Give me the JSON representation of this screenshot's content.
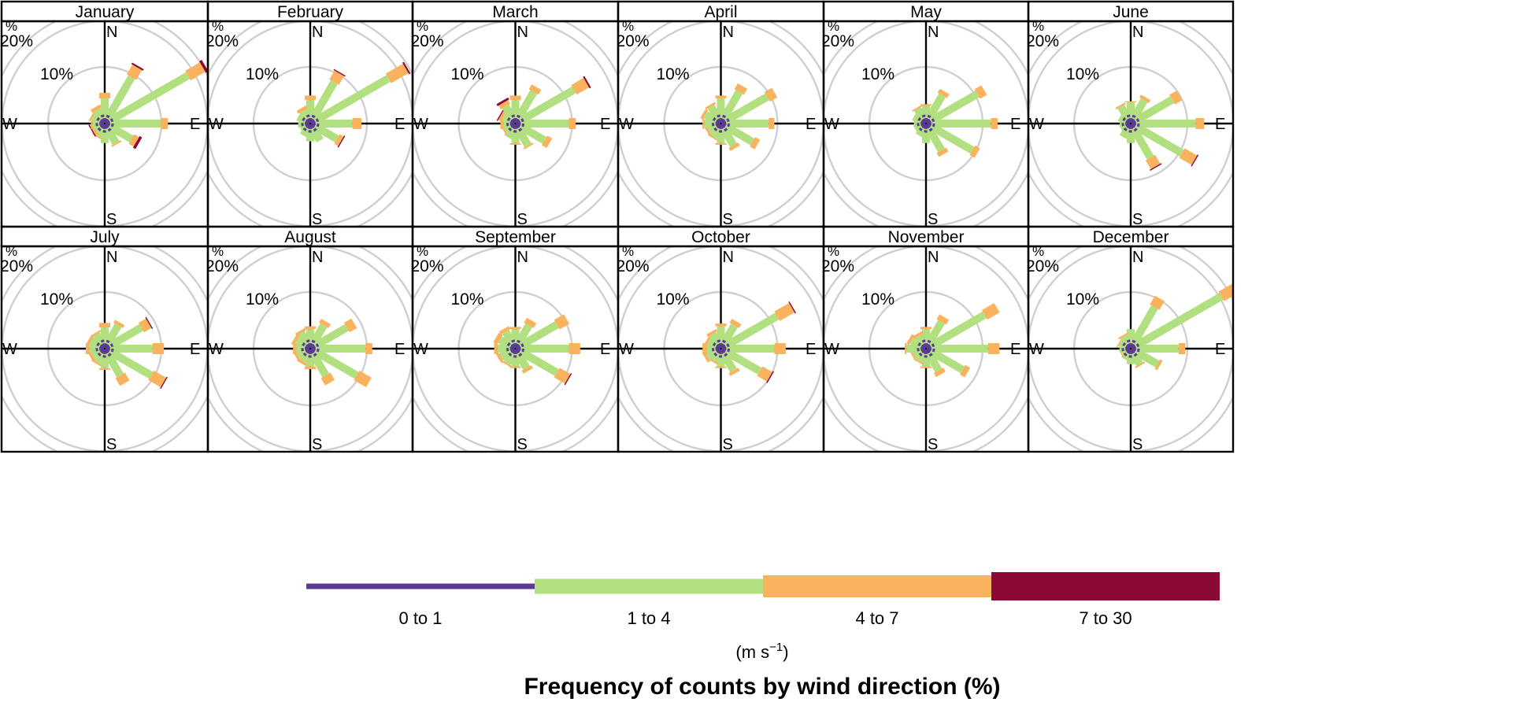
{
  "chart_data": {
    "type": "windrose",
    "facet_by": "month",
    "compass_labels": [
      "N",
      "E",
      "S",
      "W"
    ],
    "directions_deg": [
      0,
      30,
      60,
      90,
      120,
      150,
      180,
      210,
      240,
      270,
      300,
      330
    ],
    "ring_values": [
      10,
      20
    ],
    "ring_labels": [
      "10%",
      "20%"
    ],
    "axis_unit_label": "%",
    "radial_max": 22,
    "legend": {
      "title_main": "(m s",
      "title_sup": "−1",
      "title_end": ")",
      "bins": [
        {
          "label": "0 to 1",
          "color": "#5b3a94"
        },
        {
          "label": "1 to 4",
          "color": "#b2e080"
        },
        {
          "label": "4 to 7",
          "color": "#f9b25e"
        },
        {
          "label": "7 to 30",
          "color": "#8a0a34"
        }
      ]
    },
    "xlabel": "Frequency of counts by wind direction (%)",
    "panels": [
      {
        "month": "January",
        "segments": [
          [
            0.8,
            3.5,
            1,
            0
          ],
          [
            0.8,
            8.5,
            2,
            0.3
          ],
          [
            0.8,
            16,
            3,
            0.5
          ],
          [
            0.8,
            9,
            1.2,
            0
          ],
          [
            0.8,
            4.5,
            1,
            0.5
          ],
          [
            0.8,
            3,
            0.3,
            0
          ],
          [
            0.8,
            2.5,
            0,
            0
          ],
          [
            0.8,
            1.5,
            0.3,
            0
          ],
          [
            0.8,
            1,
            0.5,
            0.2
          ],
          [
            0.8,
            1.2,
            0.3,
            0
          ],
          [
            0.8,
            1.5,
            0.3,
            0
          ],
          [
            0.8,
            1.8,
            0.6,
            0
          ]
        ]
      },
      {
        "month": "February",
        "segments": [
          [
            0.8,
            3.2,
            0.8,
            0
          ],
          [
            0.8,
            7.5,
            1.8,
            0.2
          ],
          [
            0.8,
            15,
            3.5,
            0.3
          ],
          [
            0.8,
            6.5,
            1.6,
            0
          ],
          [
            0.8,
            4.5,
            0.8,
            0.2
          ],
          [
            0.8,
            2.5,
            0,
            0
          ],
          [
            0.8,
            2.2,
            0,
            0
          ],
          [
            0.8,
            1.5,
            0,
            0
          ],
          [
            0.8,
            1,
            0,
            0
          ],
          [
            0.8,
            1.2,
            0,
            0
          ],
          [
            0.8,
            1.5,
            0,
            0
          ],
          [
            0.8,
            1.6,
            0.6,
            0
          ]
        ]
      },
      {
        "month": "March",
        "segments": [
          [
            0.8,
            3.2,
            0.8,
            0
          ],
          [
            0.8,
            5.5,
            1,
            0
          ],
          [
            0.8,
            11,
            2.5,
            0.3
          ],
          [
            0.8,
            8.5,
            1.2,
            0
          ],
          [
            0.8,
            5,
            1,
            0
          ],
          [
            0.8,
            3.5,
            0.3,
            0
          ],
          [
            0.8,
            2.5,
            0.3,
            0
          ],
          [
            0.8,
            1.8,
            0,
            0
          ],
          [
            0.8,
            1.2,
            0.3,
            0
          ],
          [
            0.8,
            1.2,
            0.5,
            0
          ],
          [
            0.8,
            1.5,
            0.5,
            0.2
          ],
          [
            0.8,
            2.5,
            0.8,
            0.4
          ]
        ]
      },
      {
        "month": "April",
        "segments": [
          [
            0.8,
            3.5,
            0.5,
            0
          ],
          [
            0.8,
            5.5,
            1.2,
            0
          ],
          [
            0.8,
            8.5,
            1.5,
            0
          ],
          [
            0.8,
            7.5,
            1,
            0
          ],
          [
            0.8,
            5.5,
            1,
            0
          ],
          [
            0.8,
            3.5,
            0.6,
            0
          ],
          [
            0.8,
            2.5,
            0.3,
            0
          ],
          [
            0.8,
            1.8,
            0.2,
            0
          ],
          [
            0.8,
            1.5,
            0.4,
            0
          ],
          [
            0.8,
            2,
            0.3,
            0
          ],
          [
            0.8,
            2.2,
            0.5,
            0
          ],
          [
            0.8,
            2.5,
            0.4,
            0
          ]
        ]
      },
      {
        "month": "May",
        "segments": [
          [
            0.8,
            2.2,
            0.3,
            0
          ],
          [
            0.8,
            4.8,
            0.8,
            0
          ],
          [
            0.8,
            9.5,
            1.4,
            0
          ],
          [
            0.8,
            10.5,
            1.2,
            0
          ],
          [
            0.8,
            8.5,
            1,
            0
          ],
          [
            0.8,
            4.5,
            0.8,
            0
          ],
          [
            0.8,
            2.5,
            0,
            0
          ],
          [
            0.8,
            1.5,
            0,
            0
          ],
          [
            0.8,
            1.2,
            0,
            0
          ],
          [
            0.8,
            1.2,
            0,
            0
          ],
          [
            0.8,
            1.5,
            0,
            0
          ],
          [
            0.8,
            2,
            0.3,
            0
          ]
        ]
      },
      {
        "month": "June",
        "segments": [
          [
            0.8,
            2.8,
            0.2,
            0
          ],
          [
            0.8,
            3.8,
            0.6,
            0
          ],
          [
            0.8,
            7.5,
            1.5,
            0
          ],
          [
            0.8,
            10.5,
            1.5,
            0
          ],
          [
            0.8,
            9.5,
            2.5,
            0.2
          ],
          [
            0.8,
            6,
            1.8,
            0.2
          ],
          [
            0.8,
            2.5,
            0,
            0
          ],
          [
            0.8,
            1.8,
            0,
            0
          ],
          [
            0.8,
            1,
            0,
            0
          ],
          [
            0.8,
            1,
            0,
            0
          ],
          [
            0.8,
            1.3,
            0,
            0
          ],
          [
            0.8,
            2.5,
            0.3,
            0
          ]
        ]
      },
      {
        "month": "July",
        "segments": [
          [
            0.8,
            2.8,
            0.8,
            0
          ],
          [
            0.8,
            3.8,
            0.6,
            0
          ],
          [
            0.8,
            6.5,
            1.5,
            0.2
          ],
          [
            0.8,
            7.5,
            2,
            0
          ],
          [
            0.8,
            8.5,
            2.5,
            0.2
          ],
          [
            0.8,
            4.5,
            1.6,
            0
          ],
          [
            0.8,
            2.5,
            0.3,
            0
          ],
          [
            0.8,
            1.8,
            0.3,
            0
          ],
          [
            0.8,
            1.5,
            0.5,
            0
          ],
          [
            0.8,
            1.8,
            0.6,
            0
          ],
          [
            0.8,
            1.8,
            0.5,
            0
          ],
          [
            0.8,
            2,
            0.3,
            0
          ]
        ]
      },
      {
        "month": "August",
        "segments": [
          [
            0.8,
            2.5,
            0.5,
            0
          ],
          [
            0.8,
            3.8,
            0.8,
            0
          ],
          [
            0.8,
            6.5,
            1.5,
            0
          ],
          [
            0.8,
            8.8,
            1.2,
            0
          ],
          [
            0.8,
            8.5,
            2.5,
            0
          ],
          [
            0.8,
            4.5,
            1.5,
            0
          ],
          [
            0.8,
            2.2,
            0.5,
            0
          ],
          [
            0.8,
            1.6,
            0.5,
            0
          ],
          [
            0.8,
            1.5,
            0.5,
            0
          ],
          [
            0.8,
            1.5,
            0.6,
            0
          ],
          [
            0.8,
            1.8,
            0.6,
            0
          ],
          [
            0.8,
            2.2,
            0.5,
            0
          ]
        ]
      },
      {
        "month": "September",
        "segments": [
          [
            0.8,
            2.5,
            0.4,
            0
          ],
          [
            0.8,
            3.8,
            1,
            0
          ],
          [
            0.8,
            7.5,
            2,
            0
          ],
          [
            0.8,
            8.5,
            2,
            0
          ],
          [
            0.8,
            7.5,
            2.2,
            0.2
          ],
          [
            0.8,
            3,
            0.6,
            0
          ],
          [
            0.8,
            2.2,
            0.3,
            0
          ],
          [
            0.8,
            2,
            0.3,
            0
          ],
          [
            0.8,
            2,
            0.5,
            0
          ],
          [
            0.8,
            2.2,
            0.6,
            0
          ],
          [
            0.8,
            2.2,
            0.8,
            0
          ],
          [
            0.8,
            2.5,
            0.6,
            0
          ]
        ]
      },
      {
        "month": "October",
        "segments": [
          [
            0.8,
            3,
            0.5,
            0
          ],
          [
            0.8,
            3.8,
            0.8,
            0
          ],
          [
            0.8,
            10.5,
            3,
            0.2
          ],
          [
            0.8,
            8.5,
            2,
            0
          ],
          [
            0.8,
            7,
            2,
            0.2
          ],
          [
            0.8,
            3.5,
            0.6,
            0
          ],
          [
            0.8,
            2.2,
            0.3,
            0
          ],
          [
            0.8,
            1.5,
            0.3,
            0
          ],
          [
            0.8,
            1.8,
            0.5,
            0
          ],
          [
            0.8,
            1.5,
            0.8,
            0
          ],
          [
            0.8,
            1.5,
            0.5,
            0
          ],
          [
            0.8,
            2,
            0.5,
            0
          ]
        ]
      },
      {
        "month": "November",
        "segments": [
          [
            0.8,
            2.5,
            0.4,
            0
          ],
          [
            0.8,
            4.5,
            1,
            0
          ],
          [
            0.8,
            11,
            2.5,
            0
          ],
          [
            0.8,
            10,
            2,
            0
          ],
          [
            0.8,
            6.5,
            1,
            0
          ],
          [
            0.8,
            3.5,
            0.8,
            0
          ],
          [
            0.8,
            2.2,
            0.3,
            0
          ],
          [
            0.8,
            1.5,
            0.3,
            0
          ],
          [
            0.8,
            1.5,
            0.3,
            0
          ],
          [
            0.8,
            2.5,
            0.3,
            0
          ],
          [
            0.8,
            2,
            0.5,
            0
          ],
          [
            0.8,
            1.6,
            0.5,
            0
          ]
        ]
      },
      {
        "month": "December",
        "segments": [
          [
            0.8,
            2.5,
            0,
            0
          ],
          [
            0.8,
            7.5,
            1.8,
            0
          ],
          [
            0.8,
            17.5,
            4.5,
            0.5
          ],
          [
            0.8,
            7.5,
            1.2,
            0
          ],
          [
            0.8,
            4.5,
            0.5,
            0
          ],
          [
            0.8,
            2.2,
            0.3,
            0
          ],
          [
            0.8,
            1.8,
            0,
            0
          ],
          [
            0.8,
            1.2,
            0,
            0
          ],
          [
            0.8,
            0.8,
            0.2,
            0
          ],
          [
            0.8,
            1,
            0,
            0
          ],
          [
            0.8,
            1.2,
            0.2,
            0
          ],
          [
            0.8,
            1.5,
            0.3,
            0
          ]
        ]
      }
    ]
  }
}
